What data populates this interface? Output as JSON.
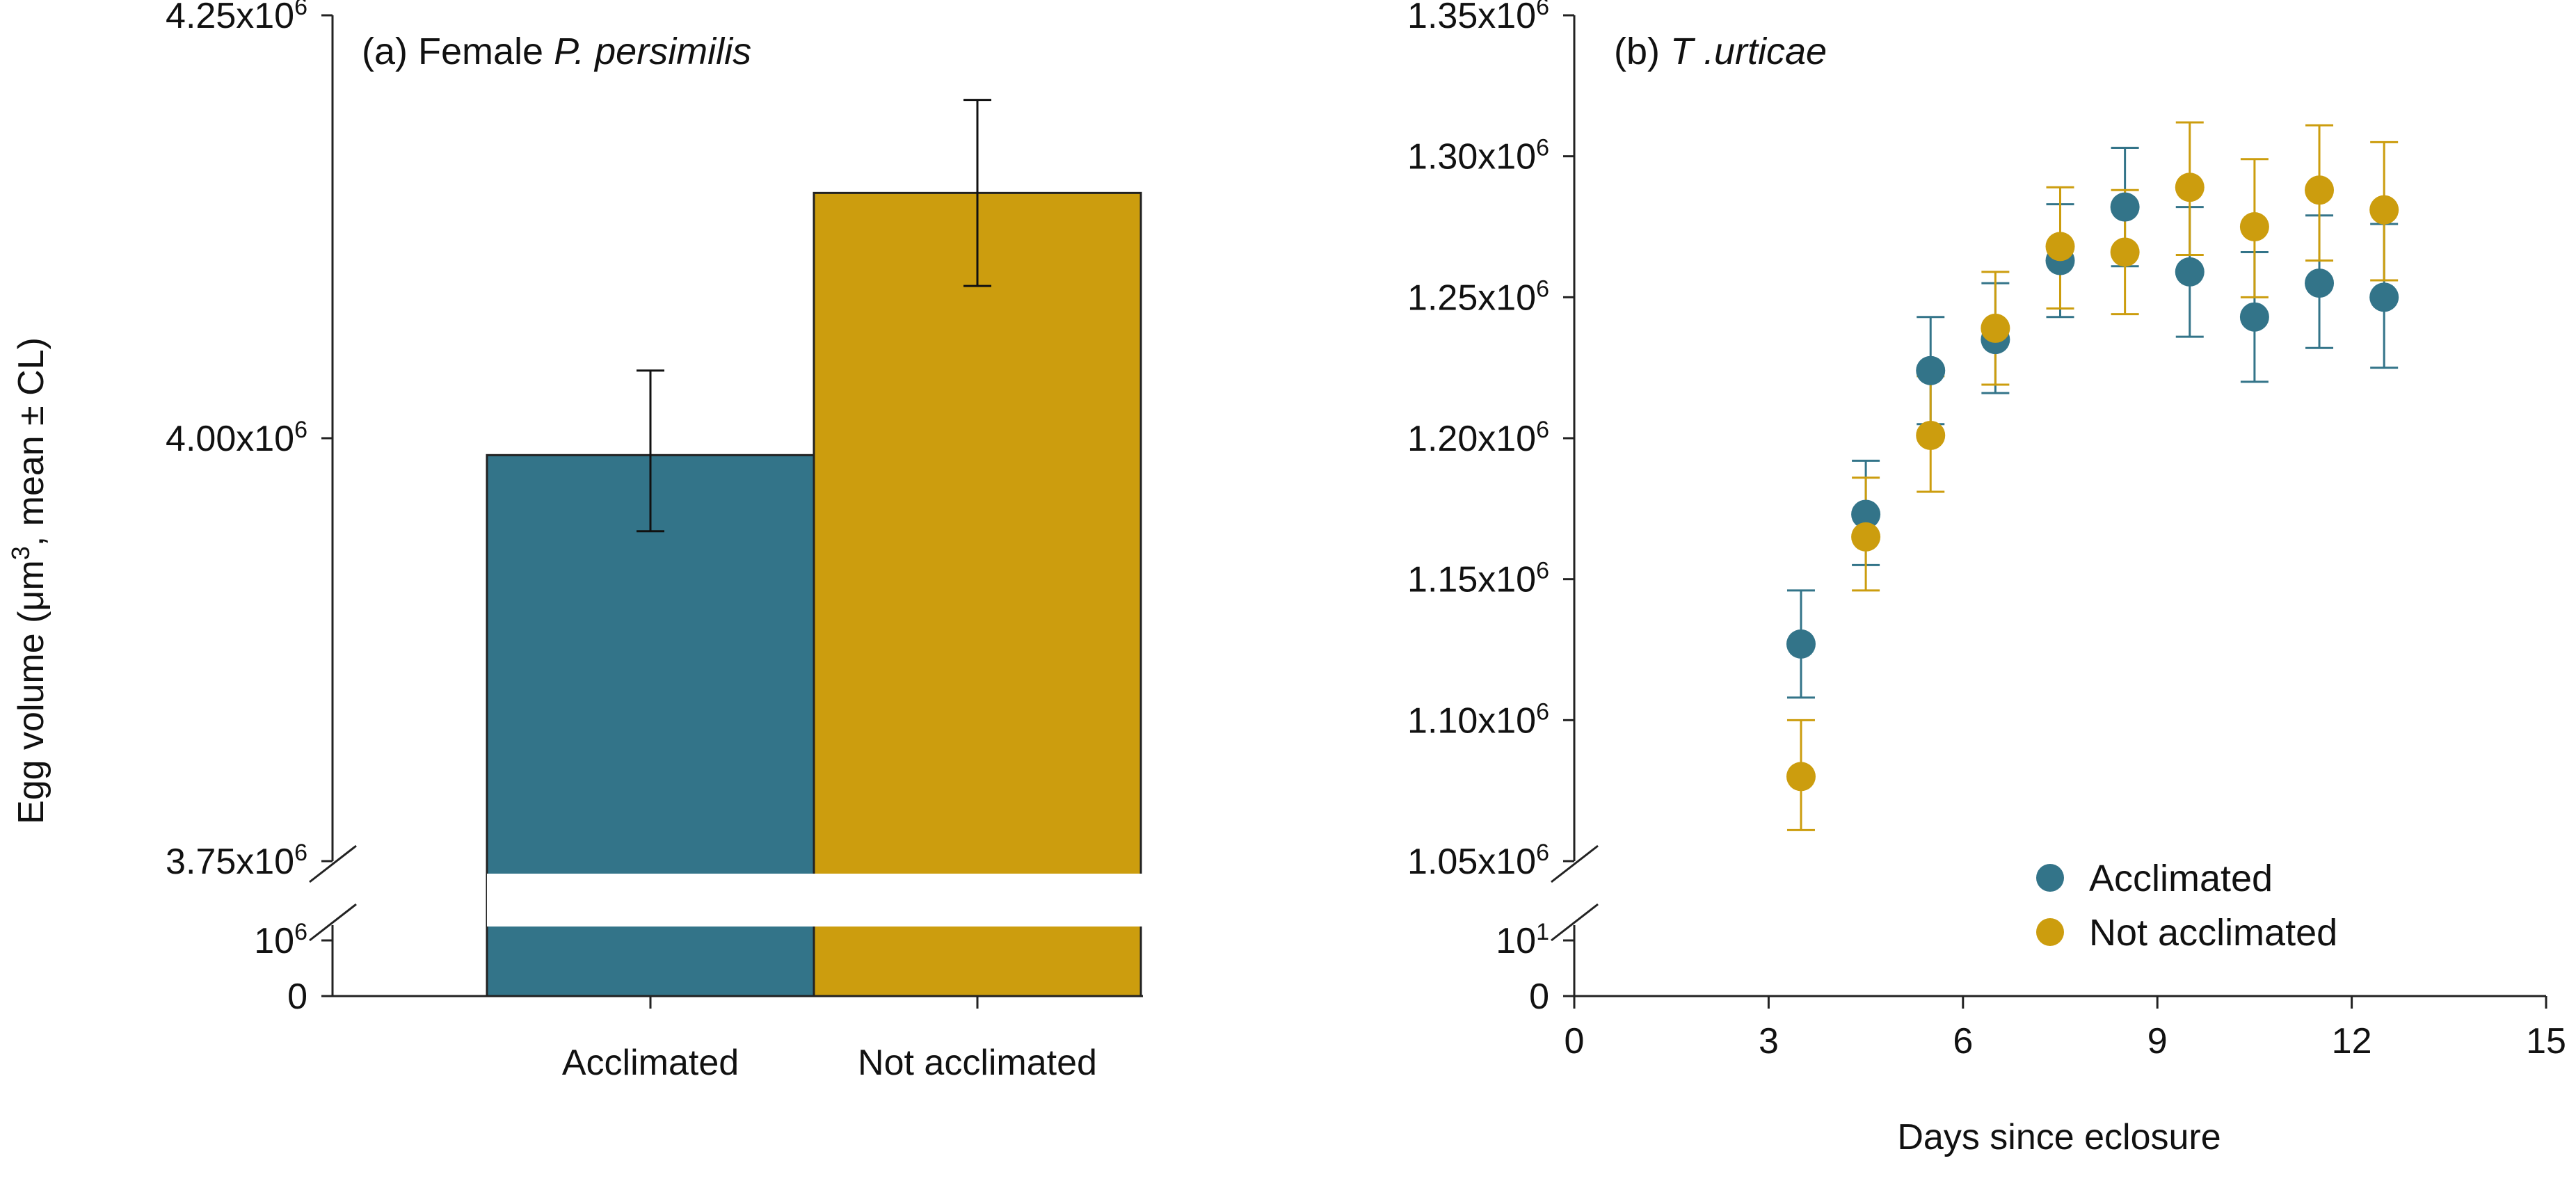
{
  "colors": {
    "acclimated": "#337489",
    "not_acclimated": "#CC9D0E",
    "axis": "#222222",
    "errorbar": "#111111"
  },
  "chart_data": [
    {
      "type": "bar",
      "panel": "a",
      "title_prefix": "(a) Female ",
      "title_italic": "P. persimilis",
      "ylabel_prefix": "Egg volume (μm",
      "ylabel_sup": "3",
      "ylabel_suffix": ", mean ± CL)",
      "xlabel": "",
      "categories": [
        "Acclimated",
        "Not acclimated"
      ],
      "values": [
        3990000,
        4145000
      ],
      "ci_low": [
        3945000,
        4090000
      ],
      "ci_high": [
        4040000,
        4200000
      ],
      "ylim": [
        3750000,
        4250000
      ],
      "broken_axis": true,
      "yticks": [
        {
          "mantissa": "4.25x10",
          "exp": "6",
          "value": 4250000
        },
        {
          "mantissa": "4.00x10",
          "exp": "6",
          "value": 4000000
        },
        {
          "mantissa": "3.75x10",
          "exp": "6",
          "value": 3750000
        }
      ],
      "lower_ticks": [
        {
          "mantissa": "10",
          "exp": "6"
        },
        {
          "mantissa": "0",
          "exp": ""
        }
      ]
    },
    {
      "type": "scatter",
      "panel": "b",
      "title_prefix": "(b) ",
      "title_italic": "T .urticae",
      "xlabel": "Days since eclosure",
      "ylabel": "",
      "xlim": [
        0,
        15
      ],
      "ylim": [
        1050000,
        1350000
      ],
      "broken_axis": true,
      "xticks": [
        "0",
        "3",
        "6",
        "9",
        "12",
        "15"
      ],
      "yticks": [
        {
          "mantissa": "1.35x10",
          "exp": "6",
          "value": 1350000
        },
        {
          "mantissa": "1.30x10",
          "exp": "6",
          "value": 1300000
        },
        {
          "mantissa": "1.25x10",
          "exp": "6",
          "value": 1250000
        },
        {
          "mantissa": "1.20x10",
          "exp": "6",
          "value": 1200000
        },
        {
          "mantissa": "1.15x10",
          "exp": "6",
          "value": 1150000
        },
        {
          "mantissa": "1.10x10",
          "exp": "6",
          "value": 1100000
        },
        {
          "mantissa": "1.05x10",
          "exp": "6",
          "value": 1050000
        }
      ],
      "lower_ticks": [
        {
          "mantissa": "10",
          "exp": "1"
        },
        {
          "mantissa": "0",
          "exp": ""
        }
      ],
      "legend": [
        "Acclimated",
        "Not acclimated"
      ],
      "legend_position": "bottom-right",
      "series": [
        {
          "name": "Acclimated",
          "x": [
            3.5,
            4.5,
            5.5,
            6.5,
            7.5,
            8.5,
            9.5,
            10.5,
            11.5,
            12.5
          ],
          "y": [
            1127000,
            1173000,
            1224000,
            1235000,
            1263000,
            1282000,
            1259000,
            1243000,
            1255000,
            1250000
          ],
          "err_low": [
            1108000,
            1155000,
            1205000,
            1216000,
            1243000,
            1261000,
            1236000,
            1220000,
            1232000,
            1225000
          ],
          "err_high": [
            1146000,
            1192000,
            1243000,
            1255000,
            1283000,
            1303000,
            1282000,
            1266000,
            1279000,
            1276000
          ]
        },
        {
          "name": "Not acclimated",
          "x": [
            3.5,
            4.5,
            5.5,
            6.5,
            7.5,
            8.5,
            9.5,
            10.5,
            11.5,
            12.5
          ],
          "y": [
            1080000,
            1165000,
            1201000,
            1239000,
            1268000,
            1266000,
            1289000,
            1275000,
            1288000,
            1281000
          ],
          "err_low": [
            1061000,
            1146000,
            1181000,
            1219000,
            1246000,
            1244000,
            1265000,
            1250000,
            1263000,
            1256000
          ],
          "err_high": [
            1100000,
            1186000,
            1222000,
            1259000,
            1289000,
            1288000,
            1312000,
            1299000,
            1311000,
            1305000
          ]
        }
      ]
    }
  ]
}
